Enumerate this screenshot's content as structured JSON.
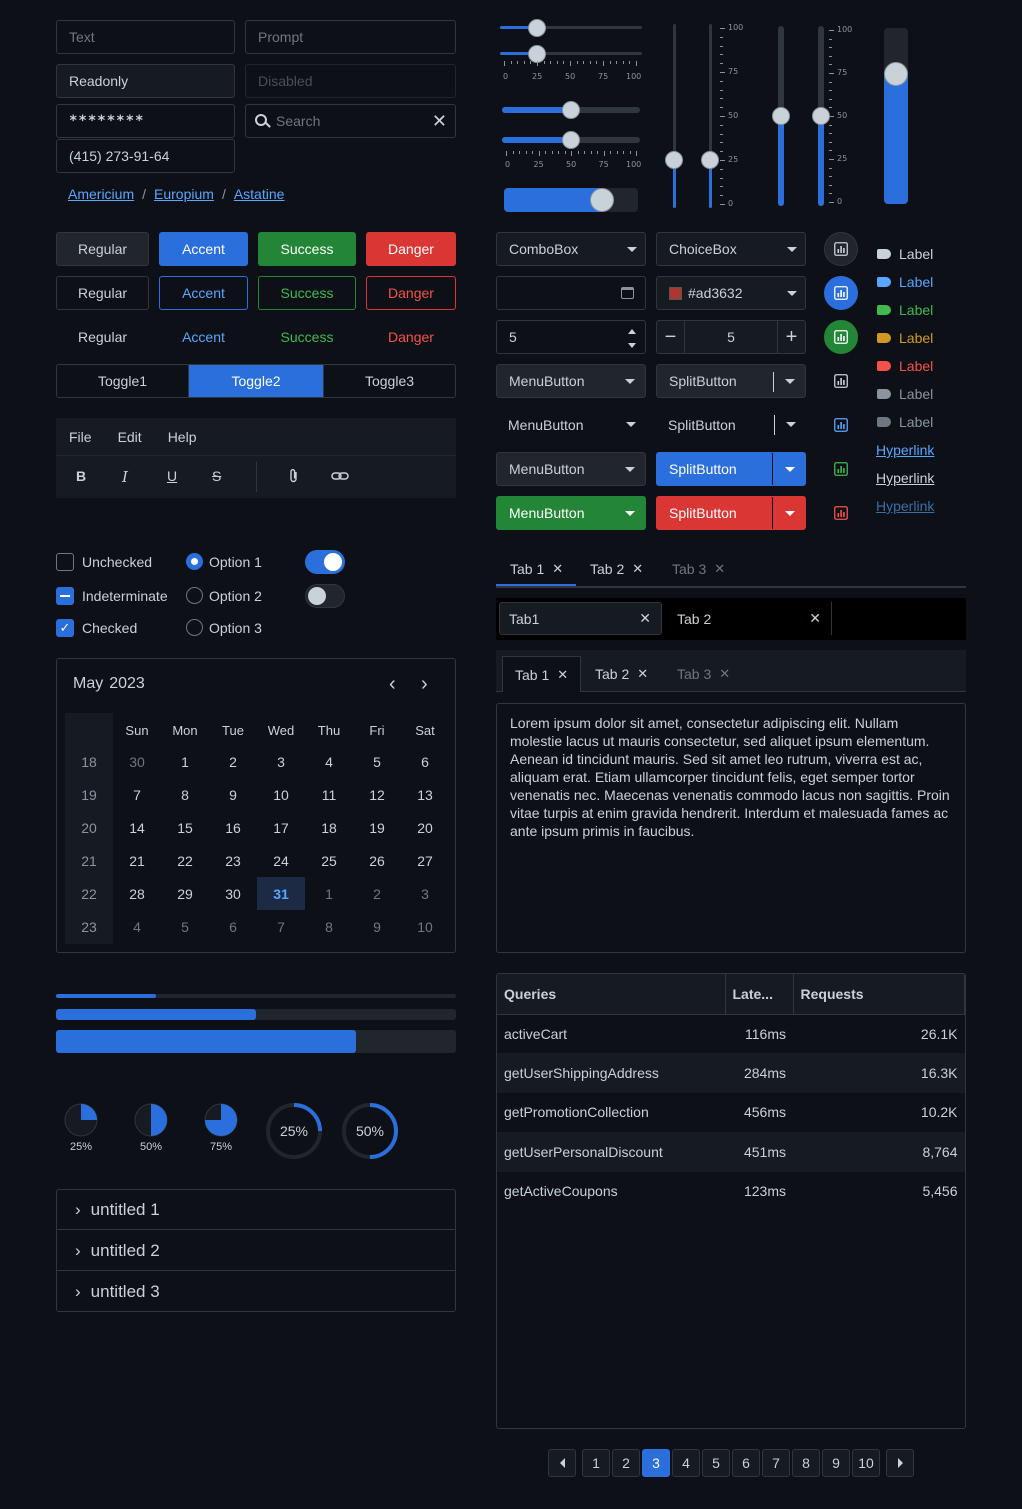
{
  "inputs": {
    "text_ph": "Text",
    "prompt_ph": "Prompt",
    "readonly": "Readonly",
    "disabled_ph": "Disabled",
    "password": "********",
    "search_ph": "Search",
    "phone": "(415) 273-91-64"
  },
  "breadcrumb": [
    "Americium",
    "Europium",
    "Astatine"
  ],
  "buttons": {
    "regular": "Regular",
    "accent": "Accent",
    "success": "Success",
    "danger": "Danger"
  },
  "toggles": [
    "Toggle1",
    "Toggle2",
    "Toggle3"
  ],
  "menubar": [
    "File",
    "Edit",
    "Help"
  ],
  "checks": {
    "unchecked": "Unchecked",
    "indeterminate": "Indeterminate",
    "checked": "Checked"
  },
  "radios": [
    "Option 1",
    "Option 2",
    "Option 3"
  ],
  "calendar": {
    "month": "May",
    "year": "2023",
    "days": [
      "Sun",
      "Mon",
      "Tue",
      "Wed",
      "Thu",
      "Fri",
      "Sat"
    ],
    "weeks": [
      [
        "18",
        "30",
        "1",
        "2",
        "3",
        "4",
        "5",
        "6"
      ],
      [
        "19",
        "7",
        "8",
        "9",
        "10",
        "11",
        "12",
        "13"
      ],
      [
        "20",
        "14",
        "15",
        "16",
        "17",
        "18",
        "19",
        "20"
      ],
      [
        "21",
        "21",
        "22",
        "23",
        "24",
        "25",
        "26",
        "27"
      ],
      [
        "22",
        "28",
        "29",
        "30",
        "31",
        "1",
        "2",
        "3"
      ],
      [
        "23",
        "4",
        "5",
        "6",
        "7",
        "8",
        "9",
        "10"
      ]
    ]
  },
  "progress": [
    0.25,
    0.5,
    0.75
  ],
  "pies": [
    {
      "value": 0.25,
      "label": "25%"
    },
    {
      "value": 0.5,
      "label": "50%"
    },
    {
      "value": 0.75,
      "label": "75%"
    }
  ],
  "rings": [
    {
      "value": 0.25,
      "label": "25%"
    },
    {
      "value": 0.5,
      "label": "50%"
    }
  ],
  "accordion": [
    "untitled 1",
    "untitled 2",
    "untitled 3"
  ],
  "slider_ticks": [
    "0",
    "25",
    "50",
    "75",
    "100"
  ],
  "controls": {
    "combobox": "ComboBox",
    "choicebox": "ChoiceBox",
    "color": "#ad3632",
    "spin1": "5",
    "spin2": "5",
    "menubutton": "MenuButton",
    "splitbutton": "SplitButton"
  },
  "labels": {
    "text": "Label",
    "hyperlink": "Hyperlink"
  },
  "tabs": [
    "Tab 1",
    "Tab 2",
    "Tab 3"
  ],
  "tabs2": [
    "Tab1",
    "Tab 2"
  ],
  "lorem": "Lorem ipsum dolor sit amet, consectetur adipiscing elit. Nullam molestie lacus ut mauris consectetur, sed aliquet ipsum elementum. Aenean id tincidunt mauris. Sed sit amet leo rutrum, viverra est ac, aliquam erat. Etiam ullamcorper tincidunt felis, eget semper tortor venenatis nec. Maecenas venenatis commodo lacus non sagittis. Proin vitae turpis at enim gravida hendrerit. Interdum et malesuada fames ac ante ipsum primis in faucibus.",
  "table": {
    "headers": [
      "Queries",
      "Late...",
      "Requests"
    ],
    "rows": [
      [
        "activeCart",
        "116ms",
        "26.1K"
      ],
      [
        "getUserShippingAddress",
        "284ms",
        "16.3K"
      ],
      [
        "getPromotionCollection",
        "456ms",
        "10.2K"
      ],
      [
        "getUserPersonalDiscount",
        "451ms",
        "8,764"
      ],
      [
        "getActiveCoupons",
        "123ms",
        "5,456"
      ]
    ]
  },
  "pagination": [
    "1",
    "2",
    "3",
    "4",
    "5",
    "6",
    "7",
    "8",
    "9",
    "10"
  ],
  "colors": {
    "accent": "#2a6fdb",
    "success": "#238636",
    "danger": "#da3633",
    "warning": "#d29922"
  }
}
